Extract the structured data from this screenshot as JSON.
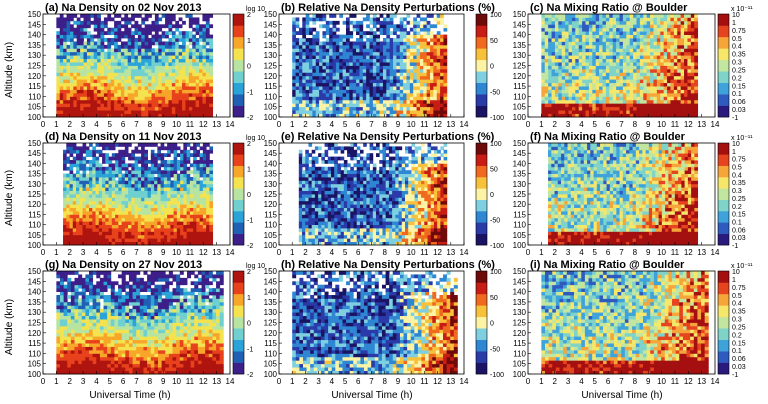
{
  "figure": {
    "xlabel": "Universal Time (h)",
    "ylabel": "Altitude (km)"
  },
  "chart_data": [
    {
      "type": "heatmap",
      "title": "(a) Na Density on 02 Nov 2013",
      "kind": "density",
      "ylabel": "Altitude (km)",
      "xlim": [
        0,
        14
      ],
      "ylim": [
        100,
        150
      ],
      "xticks": [
        0,
        1,
        2,
        3,
        4,
        5,
        6,
        7,
        8,
        9,
        10,
        11,
        12,
        13,
        14
      ],
      "yticks": [
        100,
        105,
        110,
        115,
        120,
        125,
        130,
        135,
        140,
        145,
        150
      ],
      "colorbar": {
        "label": "log 10",
        "ticks": [
          "2",
          "1",
          "0",
          "-1",
          "-2"
        ]
      },
      "data_extent_ut": [
        1,
        12.7
      ]
    },
    {
      "type": "heatmap",
      "title": "(b) Relative Na Density Perturbations (%)",
      "kind": "perturbation",
      "xlim": [
        0,
        14
      ],
      "ylim": [
        100,
        150
      ],
      "xticks": [
        0,
        1,
        2,
        3,
        4,
        5,
        6,
        7,
        8,
        9,
        10,
        11,
        12,
        13,
        14
      ],
      "yticks": [
        100,
        105,
        110,
        115,
        120,
        125,
        130,
        135,
        140,
        145,
        150
      ],
      "colorbar": {
        "label": "",
        "ticks": [
          "100",
          "50",
          "0",
          "-50",
          "-100"
        ]
      },
      "data_extent_ut": [
        1,
        12.7
      ]
    },
    {
      "type": "heatmap",
      "title": "(c) Na Mixing Ratio @ Boulder",
      "kind": "mixing",
      "xlim": [
        0,
        14
      ],
      "ylim": [
        100,
        150
      ],
      "xticks": [
        0,
        1,
        2,
        3,
        4,
        5,
        6,
        7,
        8,
        9,
        10,
        11,
        12,
        13,
        14
      ],
      "yticks": [
        100,
        105,
        110,
        115,
        120,
        125,
        130,
        135,
        140,
        145,
        150
      ],
      "colorbar": {
        "label": "x 10⁻¹¹",
        "ticks": [
          "10",
          "1",
          "0.75",
          "0.5",
          "0.4",
          "0.35",
          "0.3",
          "0.25",
          "0.2",
          "0.15",
          "0.1",
          "0.06",
          "0.03",
          "-1"
        ]
      },
      "data_extent_ut": [
        1,
        12.7
      ]
    },
    {
      "type": "heatmap",
      "title": "(d) Na Density on 11 Nov 2013",
      "kind": "density",
      "ylabel": "Altitude (km)",
      "xlim": [
        0,
        14
      ],
      "ylim": [
        100,
        150
      ],
      "xticks": [
        0,
        1,
        2,
        3,
        4,
        5,
        6,
        7,
        8,
        9,
        10,
        11,
        12,
        13,
        14
      ],
      "yticks": [
        100,
        105,
        110,
        115,
        120,
        125,
        130,
        135,
        140,
        145,
        150
      ],
      "colorbar": {
        "label": "log 10",
        "ticks": [
          "2",
          "1",
          "0",
          "-1",
          "-2"
        ]
      },
      "data_extent_ut": [
        1.5,
        12.7
      ]
    },
    {
      "type": "heatmap",
      "title": "(e) Relative Na Density Perturbations (%)",
      "kind": "perturbation",
      "xlim": [
        0,
        14
      ],
      "ylim": [
        100,
        150
      ],
      "xticks": [
        0,
        1,
        2,
        3,
        4,
        5,
        6,
        7,
        8,
        9,
        10,
        11,
        12,
        13,
        14
      ],
      "yticks": [
        100,
        105,
        110,
        115,
        120,
        125,
        130,
        135,
        140,
        145,
        150
      ],
      "colorbar": {
        "label": "",
        "ticks": [
          "100",
          "50",
          "0",
          "-50",
          "-100"
        ]
      },
      "data_extent_ut": [
        1.5,
        12.7
      ]
    },
    {
      "type": "heatmap",
      "title": "(f) Na Mixing Ratio @ Boulder",
      "kind": "mixing",
      "xlim": [
        0,
        14
      ],
      "ylim": [
        100,
        150
      ],
      "xticks": [
        0,
        1,
        2,
        3,
        4,
        5,
        6,
        7,
        8,
        9,
        10,
        11,
        12,
        13,
        14
      ],
      "yticks": [
        100,
        105,
        110,
        115,
        120,
        125,
        130,
        135,
        140,
        145,
        150
      ],
      "colorbar": {
        "label": "x 10⁻¹¹",
        "ticks": [
          "10",
          "1",
          "0.75",
          "0.5",
          "0.4",
          "0.35",
          "0.3",
          "0.25",
          "0.2",
          "0.15",
          "0.1",
          "0.06",
          "0.03",
          "-1"
        ]
      },
      "data_extent_ut": [
        1.5,
        12.7
      ]
    },
    {
      "type": "heatmap",
      "title": "(g) Na Density on 27 Nov 2013",
      "kind": "density",
      "ylabel": "Altitude (km)",
      "xlabel": "Universal Time (h)",
      "xlim": [
        0,
        14
      ],
      "ylim": [
        100,
        150
      ],
      "xticks": [
        0,
        1,
        2,
        3,
        4,
        5,
        6,
        7,
        8,
        9,
        10,
        11,
        12,
        13,
        14
      ],
      "yticks": [
        100,
        105,
        110,
        115,
        120,
        125,
        130,
        135,
        140,
        145,
        150
      ],
      "colorbar": {
        "label": "log 10",
        "ticks": [
          "2",
          "1",
          "0",
          "-1",
          "-2"
        ]
      },
      "data_extent_ut": [
        1,
        13.5
      ]
    },
    {
      "type": "heatmap",
      "title": "(h) Relative Na Density Perturbations (%)",
      "kind": "perturbation",
      "xlabel": "Universal Time (h)",
      "xlim": [
        0,
        14
      ],
      "ylim": [
        100,
        150
      ],
      "xticks": [
        0,
        1,
        2,
        3,
        4,
        5,
        6,
        7,
        8,
        9,
        10,
        11,
        12,
        13,
        14
      ],
      "yticks": [
        100,
        105,
        110,
        115,
        120,
        125,
        130,
        135,
        140,
        145,
        150
      ],
      "colorbar": {
        "label": "",
        "ticks": [
          "100",
          "50",
          "0",
          "-50",
          "-100"
        ]
      },
      "data_extent_ut": [
        1,
        13.5
      ]
    },
    {
      "type": "heatmap",
      "title": "(i) Na Mixing Ratio @ Boulder",
      "kind": "mixing",
      "xlabel": "Universal Time (h)",
      "xlim": [
        0,
        14
      ],
      "ylim": [
        100,
        150
      ],
      "xticks": [
        0,
        1,
        2,
        3,
        4,
        5,
        6,
        7,
        8,
        9,
        10,
        11,
        12,
        13,
        14
      ],
      "yticks": [
        100,
        105,
        110,
        115,
        120,
        125,
        130,
        135,
        140,
        145,
        150
      ],
      "colorbar": {
        "label": "x 10⁻¹¹",
        "ticks": [
          "10",
          "1",
          "0.75",
          "0.5",
          "0.4",
          "0.35",
          "0.3",
          "0.25",
          "0.2",
          "0.15",
          "0.1",
          "0.06",
          "0.03",
          "-1"
        ]
      },
      "data_extent_ut": [
        1,
        13.5
      ]
    }
  ],
  "palettes": {
    "density": [
      "#3d1f8a",
      "#1f5fb4",
      "#2aa4d8",
      "#6fd0cf",
      "#b7e4a0",
      "#f4e34f",
      "#f7a62a",
      "#e8421c",
      "#b0140f"
    ],
    "perturbation": [
      "#1b1464",
      "#2a3aa8",
      "#2f86d2",
      "#7ecfe0",
      "#fdf3a4",
      "#f7c13b",
      "#ef6a1f",
      "#c81d14",
      "#6e0a0a"
    ],
    "mixing": [
      "#2b1a7e",
      "#2f5bbf",
      "#3fa2db",
      "#7fd3c9",
      "#c2e6a0",
      "#f6e66a",
      "#f5a53a",
      "#e5441f",
      "#a40f10"
    ]
  }
}
